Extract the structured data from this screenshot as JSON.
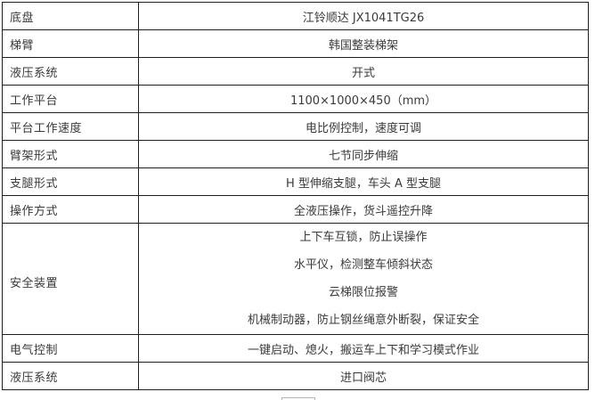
{
  "table": {
    "rows": [
      {
        "label": "底盘",
        "value": "江铃顺达 JX1041TG26"
      },
      {
        "label": "梯臂",
        "value": "韩国整装梯架"
      },
      {
        "label": "液压系统",
        "value": "开式"
      },
      {
        "label": "工作平台",
        "value": "1100×1000×450（mm）"
      },
      {
        "label": "平台工作速度",
        "value": "电比例控制，速度可调"
      },
      {
        "label": "臂架形式",
        "value": "七节同步伸缩"
      },
      {
        "label": "支腿形式",
        "value": "H 型伸缩支腿，车头 A 型支腿"
      },
      {
        "label": "操作方式",
        "value": "全液压操作，货斗遥控升降"
      },
      {
        "label": "安全装置",
        "lines": [
          "上下车互锁，防止误操作",
          "水平仪，检测整车倾斜状态",
          "云梯限位报警",
          "机械制动器，防止钢丝绳意外断裂，保证安全"
        ]
      },
      {
        "label": "电气控制",
        "value": "一键启动、熄火，搬运车上下和学习模式作业"
      },
      {
        "label": "液压系统",
        "value": "进口阀芯"
      }
    ],
    "colors": {
      "border": "#1f1f1f",
      "text": "#3a3a3a",
      "background": "#ffffff"
    }
  }
}
